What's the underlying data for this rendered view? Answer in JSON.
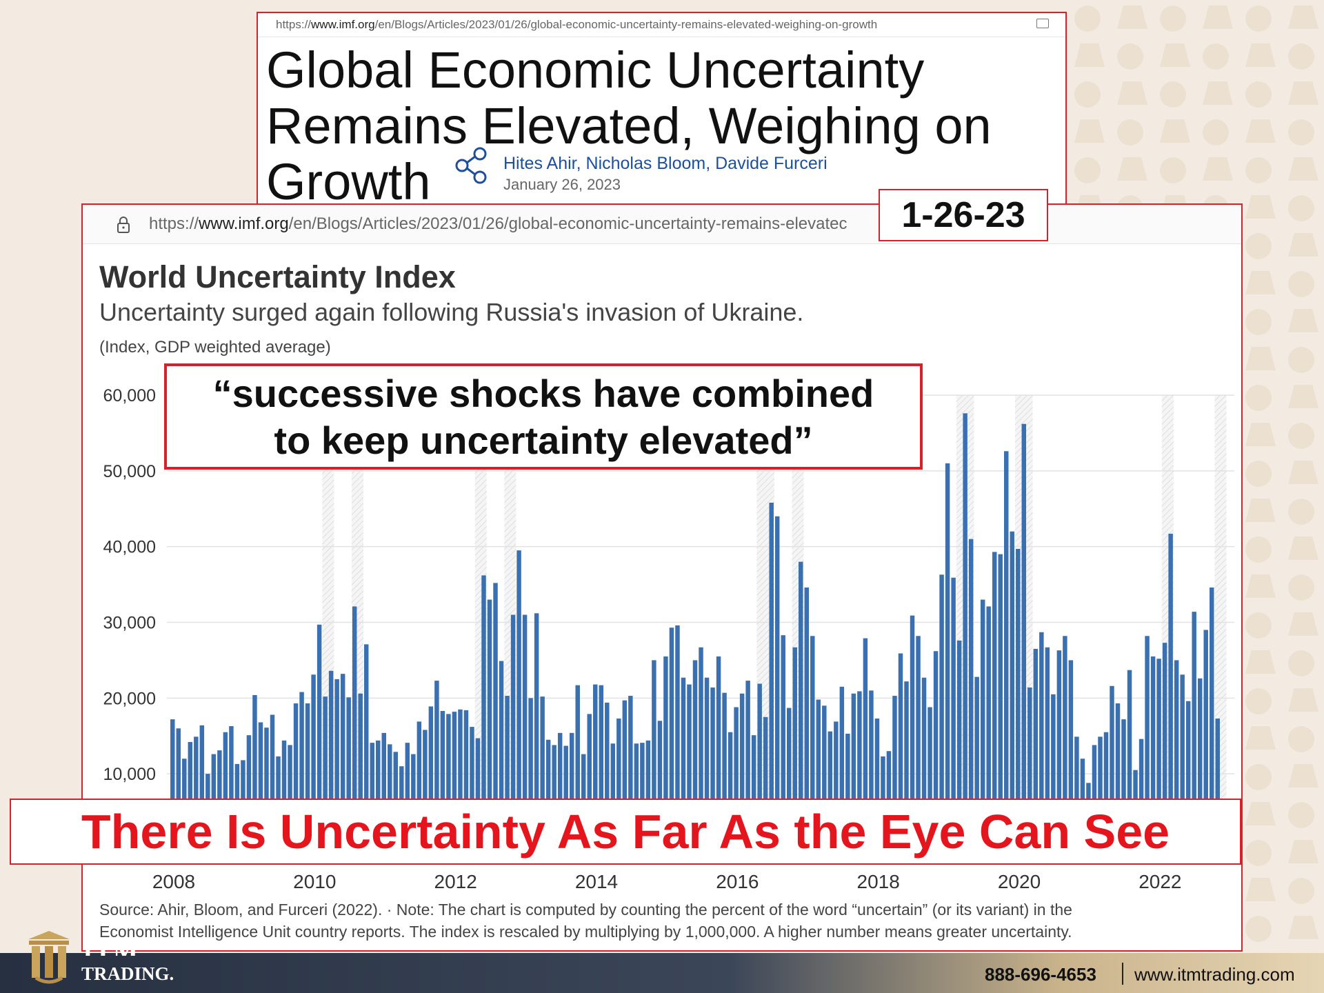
{
  "article": {
    "url_prefix": "https://",
    "url_host": "www.imf.org",
    "url_path": "/en/Blogs/Articles/2023/01/26/global-economic-uncertainty-remains-elevated-weighing-on-growth",
    "title_line1": "Global Economic Uncertainty",
    "title_line2": "Remains Elevated, Weighing on",
    "title_line3": "Growth",
    "authors": [
      "Hites Ahir",
      "Nicholas Bloom",
      "Davide Furceri"
    ],
    "date": "January 26, 2023"
  },
  "chart_page": {
    "url_prefix": "https://",
    "url_host": "www.imf.org",
    "url_path": "/en/Blogs/Articles/2023/01/26/global-economic-uncertainty-remains-elevatec"
  },
  "date_stamp": "1-26-23",
  "quote_line1": "“successive shocks have combined",
  "quote_line2": "to keep uncertainty elevated”",
  "banner": "There Is Uncertainty As Far As the Eye Can See",
  "source_line1": "Source: Ahir, Bloom, and Furceri (2022). · Note: The chart is computed by counting the percent of the word “uncertain” (or its variant) in the",
  "source_line2": "Economist Intelligence Unit country reports. The index is rescaled by multiplying by 1,000,000. A higher number means greater uncertainty.",
  "chart_data": {
    "type": "bar",
    "title": "World Uncertainty Index",
    "subtitle": "Uncertainty surged again following Russia's invasion of Ukraine.",
    "ylabel": "(Index, GDP weighted average)",
    "ylim": [
      0,
      60000
    ],
    "yticks": [
      10000,
      20000,
      30000,
      40000,
      50000,
      60000
    ],
    "ytick_labels": [
      "10,000",
      "20,000",
      "30,000",
      "40,000",
      "50,000",
      "60,000"
    ],
    "xtick_labels": [
      "2008",
      "2010",
      "2012",
      "2014",
      "2016",
      "2018",
      "2020",
      "2022"
    ],
    "x_start": "2008-01",
    "frequency": "monthly",
    "color": "#3a70b0",
    "values": [
      17200,
      16000,
      12000,
      14200,
      14900,
      16400,
      10000,
      12600,
      13100,
      15500,
      16300,
      11300,
      11800,
      15100,
      20400,
      16800,
      16100,
      17800,
      12300,
      14400,
      13800,
      19300,
      20800,
      19300,
      23100,
      29700,
      20200,
      23600,
      22500,
      23200,
      20100,
      32100,
      20600,
      27100,
      14100,
      14400,
      15400,
      13900,
      12900,
      11000,
      14100,
      12600,
      16900,
      15800,
      18900,
      22300,
      18300,
      17900,
      18200,
      18500,
      18400,
      16200,
      14700,
      36200,
      33000,
      35200,
      24900,
      20300,
      31000,
      39500,
      31000,
      20000,
      31200,
      20200,
      14500,
      13800,
      15400,
      13700,
      15400,
      21700,
      12600,
      17900,
      21800,
      21700,
      19400,
      14000,
      17300,
      19700,
      20300,
      14000,
      14100,
      14400,
      25000,
      17000,
      25500,
      29300,
      29600,
      22700,
      21800,
      25000,
      26700,
      22700,
      21400,
      25500,
      20700,
      15500,
      18800,
      20600,
      22300,
      15100,
      21900,
      17500,
      45800,
      44000,
      28300,
      18700,
      26700,
      38000,
      34600,
      28200,
      19800,
      19000,
      15600,
      16900,
      21500,
      15300,
      20600,
      20900,
      27900,
      21000,
      17300,
      12300,
      13000,
      20300,
      25900,
      22200,
      30900,
      28200,
      22700,
      18800,
      26200,
      36300,
      51000,
      35900,
      27600,
      57600,
      41000,
      22800,
      33000,
      32100,
      39300,
      39000,
      52600,
      42000,
      39700,
      56200,
      21400,
      26500,
      28700,
      26700,
      20500,
      26300,
      28200,
      25000,
      14900,
      12000,
      8800,
      13800,
      14900,
      15500,
      21600,
      19300,
      17200,
      23700,
      10500,
      14600,
      28200,
      25500,
      25200,
      27300,
      41700,
      25000,
      23100,
      19600,
      31400,
      22600,
      29000,
      34600,
      17300
    ],
    "shaded_periods": [
      {
        "start": "2010-03",
        "end": "2010-04"
      },
      {
        "start": "2010-08",
        "end": "2010-09"
      },
      {
        "start": "2012-05",
        "end": "2012-06"
      },
      {
        "start": "2012-10",
        "end": "2012-11"
      },
      {
        "start": "2016-05",
        "end": "2016-07"
      },
      {
        "start": "2016-11",
        "end": "2016-12"
      },
      {
        "start": "2019-03",
        "end": "2019-05"
      },
      {
        "start": "2020-01",
        "end": "2020-03"
      },
      {
        "start": "2022-02",
        "end": "2022-03"
      },
      {
        "start": "2022-11",
        "end": "2022-12"
      }
    ]
  },
  "footer": {
    "brand_top": "ITM",
    "brand_bottom": "TRADING.",
    "phone": "888-696-4653",
    "website": "www.itmtrading.com"
  },
  "colors": {
    "accent_red": "#d8202a",
    "banner_red": "#e5151d",
    "bar_blue": "#3a70b0",
    "author_blue": "#1d4f9c"
  },
  "icons": {
    "share": "share-icon",
    "lock": "lock-icon",
    "tabs": "tabs-icon",
    "logo": "pillar-logo-icon"
  }
}
